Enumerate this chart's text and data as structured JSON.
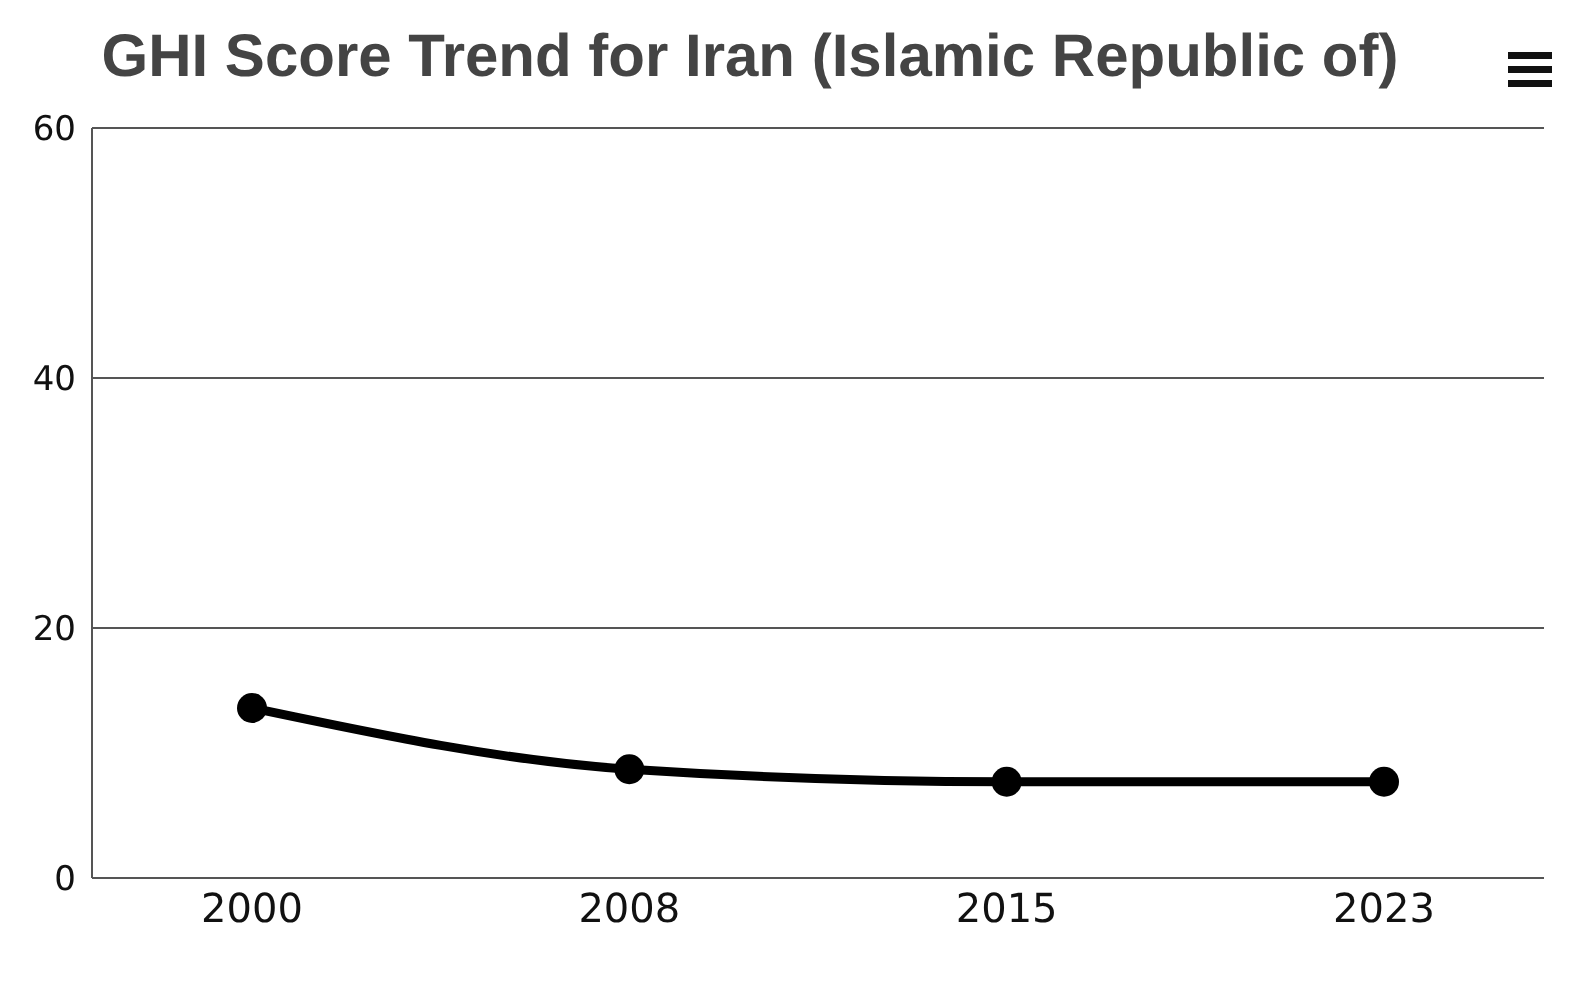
{
  "chart_data": {
    "type": "line",
    "title": "GHI Score Trend for Iran (Islamic Republic of)",
    "categories": [
      "2000",
      "2008",
      "2015",
      "2023"
    ],
    "series": [
      {
        "color": "#000000",
        "values": [
          13.6,
          8.7,
          7.7,
          7.7
        ]
      }
    ],
    "ylim": [
      0,
      60
    ],
    "yticks": [
      0,
      20,
      40,
      60
    ],
    "grid": "y",
    "marker": "circle",
    "legend": false
  }
}
